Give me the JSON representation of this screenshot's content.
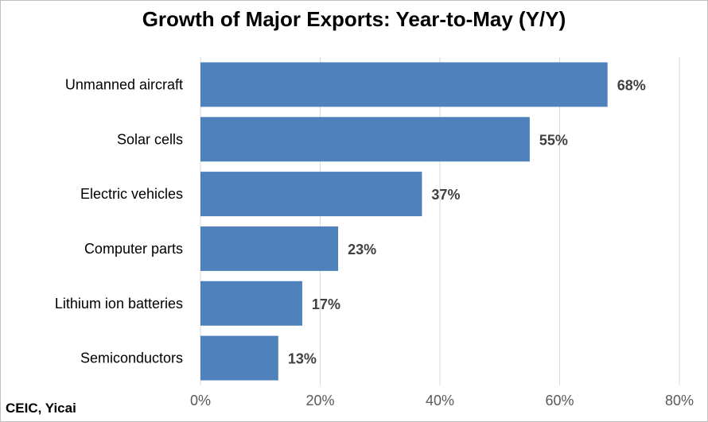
{
  "source": "CEIC, Yicai",
  "chart_data": {
    "type": "bar",
    "orientation": "horizontal",
    "title": "Growth of Major Exports: Year-to-May (Y/Y)",
    "categories": [
      "Unmanned aircraft",
      "Solar cells",
      "Electric vehicles",
      "Computer parts",
      "Lithium ion batteries",
      "Semiconductors"
    ],
    "values": [
      68,
      55,
      37,
      23,
      17,
      13
    ],
    "data_labels": [
      "68%",
      "55%",
      "37%",
      "23%",
      "17%",
      "13%"
    ],
    "xlim": [
      0,
      80
    ],
    "x_ticks": [
      0,
      20,
      40,
      60,
      80
    ],
    "x_tick_labels": [
      "0%",
      "20%",
      "40%",
      "60%",
      "80%"
    ],
    "grid": "vertical",
    "legend": "none",
    "bar_color": "#4f81bd",
    "gridline_color": "#d9d9d9",
    "label_color": "#404040"
  }
}
